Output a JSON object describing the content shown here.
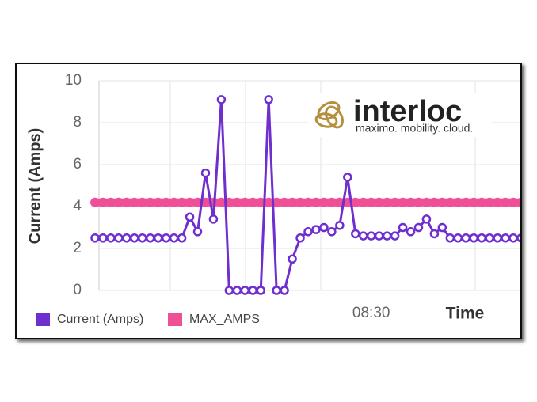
{
  "chart_data": {
    "type": "line",
    "logo": {
      "name": "interloc",
      "tagline": "maximo. mobility. cloud."
    },
    "ylabel": "Current (Amps)",
    "xlabel": "Time",
    "categories": [
      null,
      null,
      null,
      null,
      null,
      null,
      null,
      null,
      null,
      null,
      null,
      null,
      null,
      null,
      null,
      null,
      null,
      null,
      null,
      null,
      null,
      null,
      null,
      null,
      null,
      null,
      null,
      null,
      null,
      null,
      null,
      null,
      null,
      null,
      null,
      "08:30",
      null,
      null,
      null,
      null,
      null,
      null,
      null,
      null,
      null,
      null,
      null,
      null,
      null,
      null,
      null,
      null,
      null,
      null,
      null
    ],
    "series": [
      {
        "name": "Current (Amps)",
        "color": "#6f2fcf",
        "values": [
          2.5,
          2.5,
          2.5,
          2.5,
          2.5,
          2.5,
          2.5,
          2.5,
          2.5,
          2.5,
          2.5,
          2.5,
          3.5,
          2.8,
          5.6,
          3.4,
          9.1,
          0,
          0,
          0,
          0,
          0,
          9.1,
          0,
          0,
          1.5,
          2.5,
          2.8,
          2.9,
          3.0,
          2.8,
          3.1,
          5.4,
          2.7,
          2.6,
          2.6,
          2.6,
          2.6,
          2.6,
          3.0,
          2.8,
          3.0,
          3.4,
          2.7,
          3.0,
          2.5,
          2.5,
          2.5,
          2.5,
          2.5,
          2.5,
          2.5,
          2.5,
          2.5,
          2.5
        ]
      },
      {
        "name": "MAX_AMPS",
        "color": "#ef4f96",
        "values": [
          4.2,
          4.2,
          4.2,
          4.2,
          4.2,
          4.2,
          4.2,
          4.2,
          4.2,
          4.2,
          4.2,
          4.2,
          4.2,
          4.2,
          4.2,
          4.2,
          4.2,
          4.2,
          4.2,
          4.2,
          4.2,
          4.2,
          4.2,
          4.2,
          4.2,
          4.2,
          4.2,
          4.2,
          4.2,
          4.2,
          4.2,
          4.2,
          4.2,
          4.2,
          4.2,
          4.2,
          4.2,
          4.2,
          4.2,
          4.2,
          4.2,
          4.2,
          4.2,
          4.2,
          4.2,
          4.2,
          4.2,
          4.2,
          4.2,
          4.2,
          4.2,
          4.2,
          4.2,
          4.2,
          4.2
        ]
      }
    ],
    "ylim": [
      0,
      10
    ],
    "yticks": [
      0,
      2,
      4,
      6,
      8,
      10
    ],
    "grid": true,
    "legend": "bottom"
  }
}
